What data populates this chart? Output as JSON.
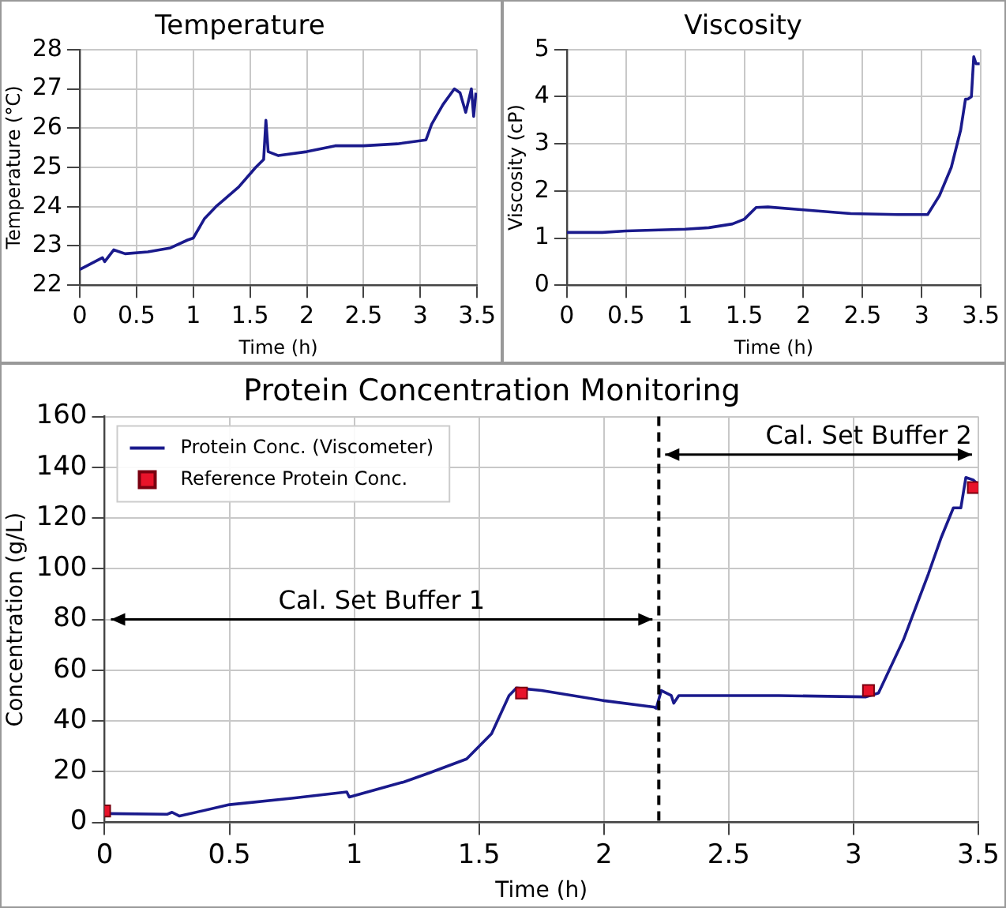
{
  "chart_data": [
    {
      "type": "line",
      "title": "Temperature",
      "xlabel": "Time (h)",
      "ylabel": "Temperature (°C)",
      "xlim": [
        0,
        3.5
      ],
      "xticks": [
        0,
        0.5,
        1,
        1.5,
        2,
        2.5,
        3,
        3.5
      ],
      "ylim": [
        22,
        28
      ],
      "yticks": [
        22,
        23,
        24,
        25,
        26,
        27,
        28
      ],
      "grid": true,
      "marker": "none",
      "legend": false,
      "series": [
        {
          "color": "#1a1a8c",
          "x": [
            0,
            0.1,
            0.2,
            0.22,
            0.3,
            0.4,
            0.6,
            0.8,
            0.95,
            1.0,
            1.1,
            1.2,
            1.4,
            1.55,
            1.62,
            1.64,
            1.66,
            1.75,
            2.0,
            2.25,
            2.5,
            2.8,
            3.05,
            3.1,
            3.2,
            3.3,
            3.35,
            3.4,
            3.45,
            3.47,
            3.49
          ],
          "values": [
            22.4,
            22.55,
            22.7,
            22.6,
            22.9,
            22.8,
            22.85,
            22.95,
            23.15,
            23.2,
            23.7,
            24.0,
            24.5,
            25.0,
            25.2,
            26.2,
            25.4,
            25.3,
            25.4,
            25.55,
            25.55,
            25.6,
            25.7,
            26.1,
            26.6,
            27.0,
            26.9,
            26.4,
            27.0,
            26.3,
            26.9
          ]
        }
      ]
    },
    {
      "type": "line",
      "title": "Viscosity",
      "xlabel": "Time (h)",
      "ylabel": "Viscosity (cP)",
      "xlim": [
        0,
        3.5
      ],
      "xticks": [
        0,
        0.5,
        1,
        1.5,
        2,
        2.5,
        3,
        3.5
      ],
      "ylim": [
        0,
        5
      ],
      "yticks": [
        0,
        1,
        2,
        3,
        4,
        5
      ],
      "grid": true,
      "marker": "none",
      "legend": false,
      "series": [
        {
          "color": "#1a1a8c",
          "x": [
            0,
            0.3,
            0.5,
            1.0,
            1.2,
            1.4,
            1.5,
            1.6,
            1.7,
            2.0,
            2.25,
            2.4,
            2.8,
            3.05,
            3.15,
            3.25,
            3.33,
            3.37,
            3.39,
            3.42,
            3.44,
            3.46,
            3.49
          ],
          "values": [
            1.12,
            1.12,
            1.15,
            1.19,
            1.22,
            1.3,
            1.4,
            1.65,
            1.66,
            1.6,
            1.55,
            1.52,
            1.5,
            1.5,
            1.9,
            2.5,
            3.3,
            3.95,
            3.95,
            4.0,
            4.85,
            4.7,
            4.7
          ]
        }
      ]
    },
    {
      "type": "line",
      "title": "Protein Concentration Monitoring",
      "xlabel": "Time (h)",
      "ylabel": "Concentration (g/L)",
      "xlim": [
        0,
        3.5
      ],
      "xticks": [
        0,
        0.5,
        1,
        1.5,
        2,
        2.5,
        3,
        3.5
      ],
      "ylim": [
        0,
        160
      ],
      "yticks": [
        0,
        20,
        40,
        60,
        80,
        100,
        120,
        140,
        160
      ],
      "grid": true,
      "legend": "top left",
      "ref_lines": [
        {
          "axis": "x",
          "value": 2.22,
          "color": "#000000",
          "line_style": "dashed"
        }
      ],
      "annotations": [
        "Cal. Set Buffer 1",
        {
          "text": "Cal. Set Buffer 2",
          "x": 2.22,
          "y": 145
        }
      ],
      "series": [
        {
          "name": "Protein Conc. (Viscometer)",
          "type": "line",
          "marker": "none",
          "color": "#1a1a8c",
          "x": [
            0,
            0.25,
            0.27,
            0.3,
            0.5,
            0.75,
            0.97,
            0.98,
            1.2,
            1.3,
            1.45,
            1.55,
            1.62,
            1.65,
            1.75,
            2.0,
            2.2,
            2.21,
            2.23,
            2.27,
            2.28,
            2.3,
            2.7,
            3.05,
            3.1,
            3.2,
            3.3,
            3.35,
            3.4,
            3.43,
            3.45,
            3.48,
            3.49
          ],
          "values": [
            3.5,
            3.2,
            4,
            2.5,
            7,
            9.5,
            12,
            10,
            16,
            19.5,
            25,
            35,
            50,
            53,
            52,
            48,
            45.5,
            45,
            52,
            50,
            47,
            50,
            50,
            49.5,
            51,
            72,
            98,
            112,
            124,
            124,
            136,
            135,
            134
          ]
        },
        {
          "name": "Reference Protein Conc.",
          "type": "scatter",
          "marker": "square",
          "color": "#e8132a",
          "x": [
            0,
            1.67,
            3.06,
            3.48
          ],
          "values": [
            4.5,
            51,
            52,
            132
          ]
        }
      ]
    }
  ]
}
